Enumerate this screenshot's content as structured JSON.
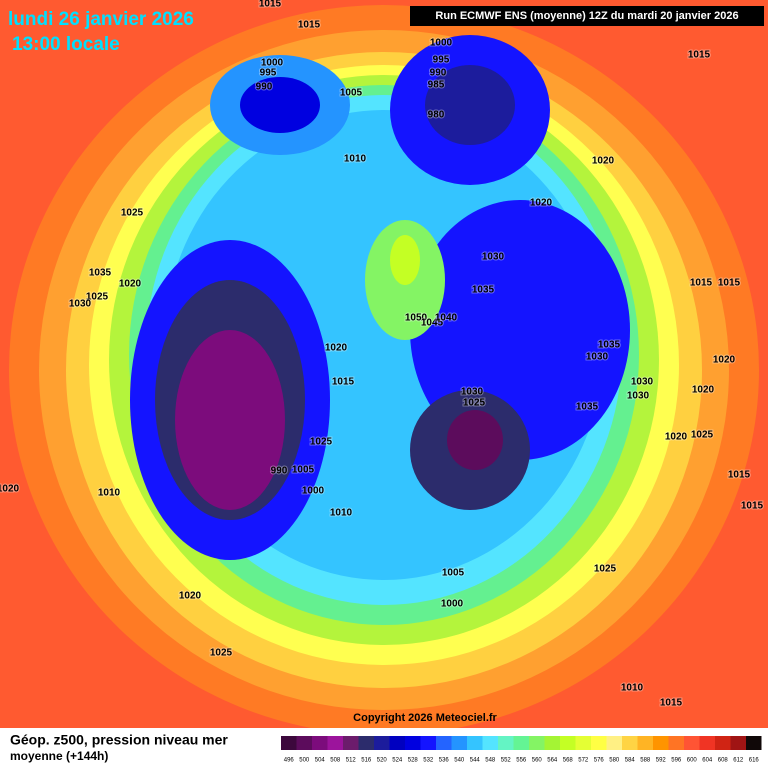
{
  "header": {
    "date": "lundi 26 janvier 2026",
    "time": "13:00 locale",
    "run": "Run ECMWF ENS (moyenne) 12Z du mardi 20 janvier 2026"
  },
  "footer": {
    "title": "Géop. z500, pression niveau mer",
    "subtitle": "moyenne  (+144h)",
    "copyright": "Copyright 2026 Meteociel.fr"
  },
  "legend": {
    "values": [
      496,
      500,
      504,
      508,
      512,
      516,
      520,
      524,
      528,
      532,
      536,
      540,
      544,
      548,
      552,
      556,
      560,
      564,
      568,
      572,
      576,
      580,
      584,
      588,
      592,
      596,
      600,
      604,
      608,
      612,
      616
    ],
    "colors": [
      "#3c083c",
      "#5c0c5c",
      "#7c0c7c",
      "#9c149c",
      "#6c1c6c",
      "#2c2c6c",
      "#1c1c9c",
      "#0000c0",
      "#0000e0",
      "#1414ff",
      "#2464ff",
      "#2494ff",
      "#34c4ff",
      "#54e4ff",
      "#64f4c4",
      "#64f494",
      "#84f464",
      "#a4f434",
      "#c4ff24",
      "#e4ff34",
      "#ffff44",
      "#fff084",
      "#ffd444",
      "#ffb424",
      "#ff9400",
      "#ff7424",
      "#ff5434",
      "#f03424",
      "#d02414",
      "#a01414",
      "#100808"
    ]
  },
  "isobars": [
    1015,
    1015,
    1000,
    995,
    990,
    1005,
    1000,
    995,
    990,
    985,
    980,
    1015,
    1010,
    1020,
    1020,
    1025,
    1030,
    1035,
    1025,
    1020,
    1030,
    1035,
    1015,
    1015,
    1050,
    1045,
    1040,
    1020,
    1035,
    1030,
    1020,
    1015,
    1030,
    1025,
    1030,
    1030,
    1020,
    1035,
    1025,
    1020,
    1025,
    990,
    1005,
    1015,
    1010,
    1000,
    1010,
    1020,
    1015,
    1005,
    1025,
    1000,
    1020,
    1025,
    1010,
    1015
  ]
}
